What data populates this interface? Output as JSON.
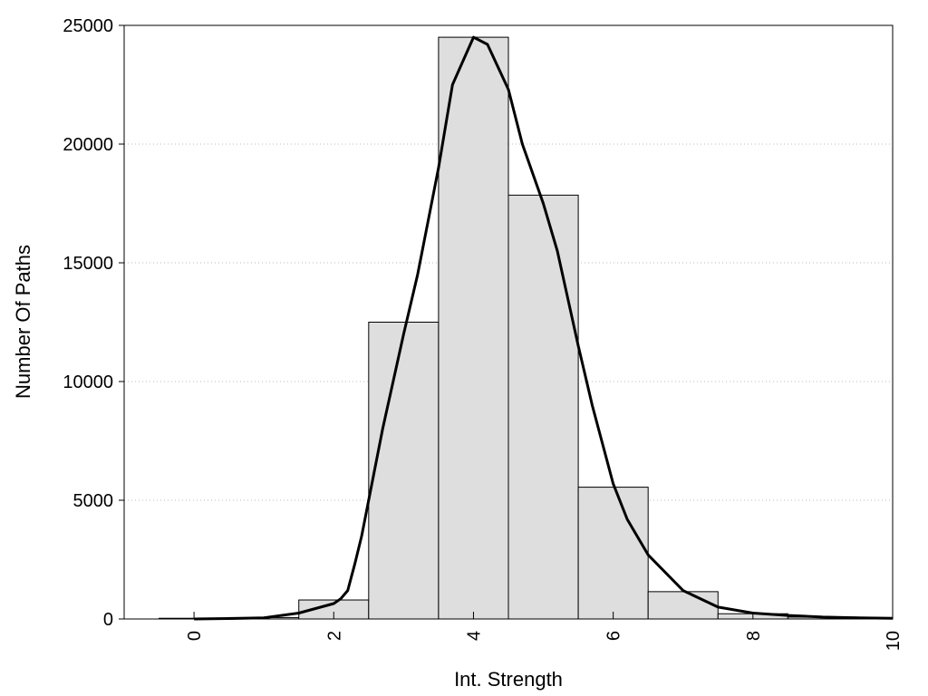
{
  "chart_data": {
    "type": "bar",
    "xlabel": "Int. Strength",
    "ylabel": "Number Of Paths",
    "xlim": [
      -1,
      10
    ],
    "ylim": [
      0,
      25000
    ],
    "x_ticks": [
      0,
      2,
      4,
      6,
      8,
      10
    ],
    "x_tick_labels": [
      "0",
      "2",
      "4",
      "6",
      "8",
      "10"
    ],
    "y_ticks": [
      0,
      5000,
      10000,
      15000,
      20000,
      25000
    ],
    "y_tick_labels": [
      "0",
      "5000",
      "10000",
      "15000",
      "20000",
      "25000"
    ],
    "grid": "horizontal dotted",
    "bin_width": 1,
    "categories": [
      "0",
      "1",
      "2",
      "3",
      "4",
      "5",
      "6",
      "7",
      "8",
      "9"
    ],
    "values": [
      30,
      60,
      800,
      12500,
      24500,
      17850,
      5550,
      1150,
      220,
      80
    ],
    "fit_curve": {
      "x": [
        0,
        0.5,
        1,
        1.5,
        2,
        2.1,
        2.2,
        2.3,
        2.4,
        2.5,
        2.7,
        3,
        3.2,
        3.5,
        3.7,
        4,
        4.2,
        4.5,
        4.7,
        5,
        5.2,
        5.5,
        5.7,
        6,
        6.2,
        6.5,
        7,
        7.5,
        8,
        8.5,
        9,
        9.5,
        10
      ],
      "y": [
        0,
        20,
        50,
        250,
        650,
        850,
        1200,
        2300,
        3500,
        5000,
        8000,
        12000,
        14500,
        19000,
        22500,
        24500,
        24200,
        22300,
        20000,
        17500,
        15500,
        11500,
        9000,
        5700,
        4200,
        2700,
        1200,
        500,
        250,
        150,
        80,
        50,
        30
      ]
    },
    "bar_color": "#dedede",
    "bar_stroke": "#000000",
    "curve_color": "#000000"
  }
}
